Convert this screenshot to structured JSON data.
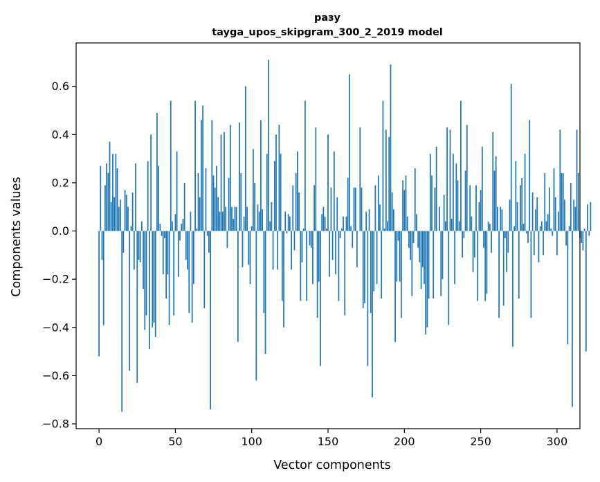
{
  "chart_data": {
    "type": "bar",
    "title": "разу",
    "subtitle": "tayga_upos_skipgram_300_2_2019 model",
    "xlabel": "Vector components",
    "ylabel": "Components values",
    "xlim": [
      -15,
      315
    ],
    "ylim": [
      -0.82,
      0.78
    ],
    "xticks": [
      0,
      50,
      100,
      150,
      200,
      250,
      300
    ],
    "yticks": [
      -0.8,
      -0.6,
      -0.4,
      -0.2,
      0.0,
      0.2,
      0.4,
      0.6
    ],
    "ytick_labels": [
      "−0.8",
      "−0.6",
      "−0.4",
      "−0.2",
      "0.0",
      "0.2",
      "0.4",
      "0.6"
    ],
    "color": "#1f77b4",
    "x_start": 0,
    "values": [
      -0.52,
      0.27,
      -0.12,
      -0.39,
      0.19,
      0.28,
      0.24,
      0.37,
      0.12,
      0.32,
      0.14,
      0.32,
      0.26,
      0.1,
      0.13,
      -0.75,
      -0.09,
      0.17,
      0.15,
      0.1,
      -0.58,
      0.02,
      0.16,
      -0.16,
      0.28,
      -0.63,
      -0.12,
      -0.13,
      0.04,
      -0.24,
      -0.41,
      -0.35,
      0.29,
      -0.49,
      0.4,
      -0.4,
      -0.38,
      -0.44,
      0.49,
      0.27,
      0.03,
      -0.02,
      -0.18,
      -0.03,
      -0.28,
      -0.18,
      -0.39,
      0.54,
      0.04,
      -0.35,
      0.07,
      0.33,
      -0.19,
      -0.04,
      0.03,
      0.05,
      0.2,
      -0.12,
      -0.16,
      -0.34,
      0.08,
      -0.38,
      -0.22,
      0.54,
      0.01,
      0.24,
      0.14,
      0.46,
      0.52,
      -0.32,
      0.26,
      -0.02,
      -0.09,
      -0.74,
      0.46,
      0.23,
      0.18,
      0.27,
      0.14,
      0.08,
      0.4,
      0.08,
      0.41,
      0.1,
      -0.07,
      0.22,
      0.44,
      0.1,
      0.05,
      0.1,
      0.1,
      -0.46,
      0.45,
      0.24,
      -0.15,
      0.06,
      0.6,
      0.1,
      -0.14,
      -0.22,
      0.02,
      0.34,
      0.2,
      -0.62,
      0.11,
      0.08,
      0.46,
      0.09,
      -0.34,
      -0.51,
      0.32,
      0.71,
      0.04,
      0.12,
      -0.16,
      0.29,
      0.4,
      -0.16,
      0.44,
      0.32,
      -0.29,
      -0.4,
      0.08,
      -0.01,
      0.07,
      0.06,
      -0.16,
      0.19,
      -0.08,
      0.24,
      0.33,
      0.16,
      -0.29,
      -0.13,
      0.01,
      0.54,
      -0.29,
      0.0,
      -0.06,
      -0.07,
      -0.22,
      0.19,
      0.43,
      -0.36,
      -0.21,
      -0.56,
      0.07,
      0.1,
      0.06,
      0.01,
      0.4,
      -0.19,
      0.18,
      -0.12,
      0.33,
      -0.18,
      0.14,
      -0.29,
      -0.03,
      0.01,
      0.06,
      -0.35,
      0.06,
      0.22,
      0.65,
      0.02,
      -0.07,
      0.18,
      0.18,
      -0.15,
      0.0,
      0.43,
      0.18,
      -0.32,
      -0.3,
      0.08,
      -0.56,
      0.09,
      -0.34,
      -0.69,
      -0.25,
      0.19,
      -0.22,
      0.23,
      0.11,
      -0.28,
      0.54,
      0.01,
      0.42,
      0.04,
      0.39,
      0.69,
      0.16,
      0.09,
      -0.46,
      -0.21,
      -0.04,
      -0.21,
      -0.36,
      0.21,
      0.17,
      0.23,
      0.06,
      -0.07,
      -0.12,
      -0.27,
      -0.05,
      0.26,
      0.07,
      -0.07,
      -0.13,
      -0.24,
      -0.15,
      -0.22,
      -0.43,
      -0.4,
      -0.28,
      0.32,
      0.23,
      -0.28,
      0.18,
      0.35,
      0.0,
      0.1,
      -0.27,
      -0.2,
      0.15,
      0.04,
      0.43,
      -0.39,
      0.42,
      0.05,
      0.32,
      -0.22,
      0.28,
      0.21,
      0.04,
      0.54,
      -0.11,
      -0.03,
      0.25,
      0.44,
      0.0,
      0.19,
      0.06,
      -0.17,
      -0.11,
      0.19,
      -0.29,
      0.12,
      0.17,
      0.35,
      -0.07,
      -0.29,
      -0.26,
      0.04,
      0.03,
      -0.09,
      0.41,
      0.25,
      0.31,
      0.1,
      -0.36,
      0.1,
      0.09,
      -0.31,
      -0.03,
      -0.17,
      -0.09,
      0.13,
      0.61,
      -0.48,
      0.02,
      0.29,
      0.12,
      -0.28,
      0.19,
      0.22,
      0.03,
      0.32,
      -0.01,
      -0.05,
      0.46,
      -0.36,
      0.16,
      -0.1,
      0.09,
      0.14,
      -0.13,
      0.02,
      0.04,
      -0.1,
      0.24,
      0.04,
      0.07,
      0.18,
      0.01,
      -0.02,
      0.26,
      0.14,
      -0.1,
      0.08,
      0.42,
      0.24,
      0.24,
      0.13,
      -0.06,
      -0.47,
      0.02,
      0.2,
      -0.73,
      0.13,
      0.1,
      0.42,
      0.24,
      -0.03,
      -0.05,
      -0.08,
      0.01,
      -0.5,
      0.11,
      -0.02,
      0.12
    ]
  }
}
